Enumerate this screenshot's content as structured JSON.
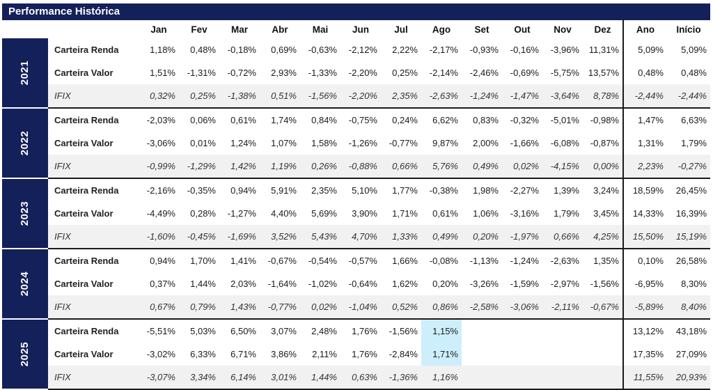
{
  "title": "Performance Histórica",
  "columns": [
    "Jan",
    "Fev",
    "Mar",
    "Abr",
    "Mai",
    "Jun",
    "Jul",
    "Ago",
    "Set",
    "Out",
    "Nov",
    "Dez",
    "Ano",
    "Início"
  ],
  "years": [
    {
      "year": "2021",
      "rows": [
        {
          "name": "Carteira Renda",
          "values": [
            "1,18%",
            "0,48%",
            "-0,18%",
            "0,69%",
            "-0,63%",
            "-2,12%",
            "2,22%",
            "-2,17%",
            "-0,93%",
            "-0,16%",
            "-3,96%",
            "11,31%",
            "5,09%",
            "5,09%"
          ]
        },
        {
          "name": "Carteira Valor",
          "values": [
            "1,51%",
            "-1,31%",
            "-0,72%",
            "2,93%",
            "-1,33%",
            "-2,20%",
            "0,25%",
            "-2,14%",
            "-2,46%",
            "-0,69%",
            "-5,75%",
            "13,57%",
            "0,48%",
            "0,48%"
          ]
        },
        {
          "name": "IFIX",
          "values": [
            "0,32%",
            "0,25%",
            "-1,38%",
            "0,51%",
            "-1,56%",
            "-2,20%",
            "2,35%",
            "-2,63%",
            "-1,24%",
            "-1,47%",
            "-3,64%",
            "8,78%",
            "-2,44%",
            "-2,44%"
          ]
        }
      ]
    },
    {
      "year": "2022",
      "rows": [
        {
          "name": "Carteira Renda",
          "values": [
            "-2,03%",
            "0,06%",
            "0,61%",
            "1,74%",
            "0,84%",
            "-0,75%",
            "0,24%",
            "6,62%",
            "0,83%",
            "-0,32%",
            "-5,01%",
            "-0,98%",
            "1,47%",
            "6,63%"
          ]
        },
        {
          "name": "Carteira Valor",
          "values": [
            "-3,06%",
            "0,01%",
            "1,24%",
            "1,07%",
            "1,58%",
            "-1,26%",
            "-0,77%",
            "9,87%",
            "2,00%",
            "-1,66%",
            "-6,08%",
            "-0,87%",
            "1,31%",
            "1,79%"
          ]
        },
        {
          "name": "IFIX",
          "values": [
            "-0,99%",
            "-1,29%",
            "1,42%",
            "1,19%",
            "0,26%",
            "-0,88%",
            "0,66%",
            "5,76%",
            "0,49%",
            "0,02%",
            "-4,15%",
            "0,00%",
            "2,23%",
            "-0,27%"
          ]
        }
      ]
    },
    {
      "year": "2023",
      "rows": [
        {
          "name": "Carteira Renda",
          "values": [
            "-2,16%",
            "-0,35%",
            "0,94%",
            "5,91%",
            "2,35%",
            "5,10%",
            "1,77%",
            "-0,38%",
            "1,98%",
            "-2,27%",
            "1,39%",
            "3,24%",
            "18,59%",
            "26,45%"
          ]
        },
        {
          "name": "Carteira Valor",
          "values": [
            "-4,49%",
            "0,28%",
            "-1,27%",
            "4,40%",
            "5,69%",
            "3,90%",
            "1,71%",
            "0,61%",
            "1,06%",
            "-3,16%",
            "1,79%",
            "3,45%",
            "14,33%",
            "16,39%"
          ]
        },
        {
          "name": "IFIX",
          "values": [
            "-1,60%",
            "-0,45%",
            "-1,69%",
            "3,52%",
            "5,43%",
            "4,70%",
            "1,33%",
            "0,49%",
            "0,20%",
            "-1,97%",
            "0,66%",
            "4,25%",
            "15,50%",
            "15,19%"
          ]
        }
      ]
    },
    {
      "year": "2024",
      "rows": [
        {
          "name": "Carteira Renda",
          "values": [
            "0,94%",
            "1,70%",
            "1,41%",
            "-0,67%",
            "-0,54%",
            "-0,57%",
            "1,66%",
            "-0,08%",
            "-1,13%",
            "-1,24%",
            "-2,63%",
            "1,35%",
            "0,10%",
            "26,58%"
          ]
        },
        {
          "name": "Carteira Valor",
          "values": [
            "0,37%",
            "1,44%",
            "2,03%",
            "-1,64%",
            "-1,02%",
            "-0,64%",
            "1,62%",
            "0,20%",
            "-3,26%",
            "-1,59%",
            "-2,97%",
            "-1,56%",
            "-6,95%",
            "8,30%"
          ]
        },
        {
          "name": "IFIX",
          "values": [
            "0,67%",
            "0,79%",
            "1,43%",
            "-0,77%",
            "0,02%",
            "-1,04%",
            "0,52%",
            "0,86%",
            "-2,58%",
            "-3,06%",
            "-2,11%",
            "-0,67%",
            "-5,89%",
            "8,40%"
          ]
        }
      ]
    },
    {
      "year": "2025",
      "rows": [
        {
          "name": "Carteira Renda",
          "values": [
            "-5,51%",
            "5,03%",
            "6,50%",
            "3,07%",
            "2,48%",
            "1,76%",
            "-1,56%",
            "1,15%",
            "",
            "",
            "",
            "",
            "13,12%",
            "43,18%"
          ]
        },
        {
          "name": "Carteira Valor",
          "values": [
            "-3,02%",
            "6,33%",
            "6,71%",
            "3,86%",
            "2,11%",
            "1,76%",
            "-2,84%",
            "1,71%",
            "",
            "",
            "",
            "",
            "17,35%",
            "27,09%"
          ]
        },
        {
          "name": "IFIX",
          "values": [
            "-3,07%",
            "3,34%",
            "6,14%",
            "3,01%",
            "1,44%",
            "0,63%",
            "-1,36%",
            "1,16%",
            "",
            "",
            "",
            "",
            "11,55%",
            "20,93%"
          ]
        }
      ]
    }
  ],
  "highlight": {
    "year_index": 4,
    "rows": [
      0,
      1
    ],
    "column_index": 7,
    "color": "#cdeffc"
  },
  "colors": {
    "header_bg": "#14205a",
    "ifix_row_bg": "#f1f1f1"
  }
}
